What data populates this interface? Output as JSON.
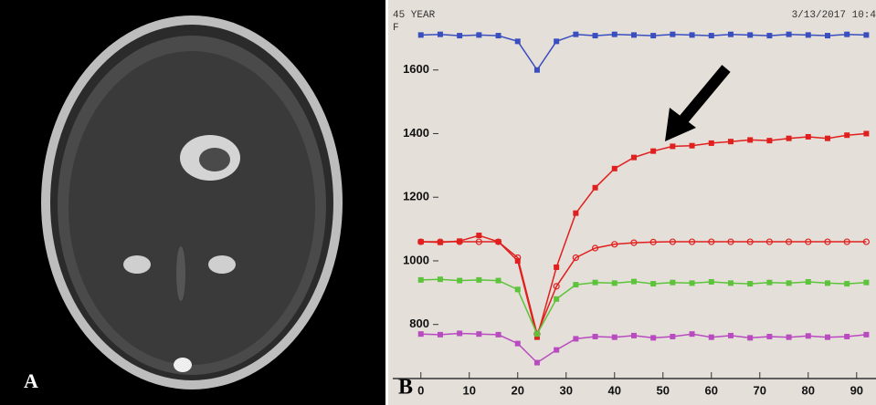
{
  "panel_a": {
    "label": "A"
  },
  "chart_data": {
    "type": "line",
    "label": "B",
    "header_left": "45 YEAR",
    "header_sex": "F",
    "header_right": "3/13/2017 10:4",
    "x": [
      0,
      4,
      8,
      12,
      16,
      20,
      24,
      28,
      32,
      36,
      40,
      44,
      48,
      52,
      56,
      60,
      64,
      68,
      72,
      76,
      80,
      84,
      88,
      92
    ],
    "series": [
      {
        "color": "#3a4fbf",
        "marker": "square",
        "values": [
          1710,
          1712,
          1708,
          1710,
          1708,
          1690,
          1600,
          1690,
          1712,
          1708,
          1712,
          1710,
          1708,
          1712,
          1710,
          1708,
          1712,
          1710,
          1708,
          1712,
          1710,
          1708,
          1712,
          1710
        ]
      },
      {
        "color": "#e0201f",
        "marker": "square",
        "values": [
          1060,
          1058,
          1062,
          1080,
          1060,
          1000,
          760,
          980,
          1150,
          1230,
          1290,
          1325,
          1345,
          1360,
          1362,
          1370,
          1375,
          1380,
          1378,
          1385,
          1390,
          1385,
          1395,
          1400
        ]
      },
      {
        "color": "#e0201f",
        "marker": "circle",
        "values": [
          1060,
          1060,
          1060,
          1060,
          1060,
          1010,
          770,
          920,
          1010,
          1040,
          1052,
          1057,
          1059,
          1060,
          1060,
          1060,
          1060,
          1060,
          1060,
          1060,
          1060,
          1060,
          1060,
          1060
        ]
      },
      {
        "color": "#5cc33a",
        "marker": "square",
        "values": [
          940,
          942,
          938,
          940,
          938,
          910,
          770,
          880,
          925,
          932,
          930,
          935,
          928,
          932,
          930,
          934,
          930,
          928,
          932,
          930,
          934,
          930,
          928,
          932
        ]
      },
      {
        "color": "#b84bc0",
        "marker": "square",
        "values": [
          770,
          768,
          772,
          770,
          768,
          740,
          680,
          720,
          755,
          762,
          760,
          765,
          758,
          762,
          770,
          760,
          765,
          758,
          762,
          760,
          764,
          760,
          762,
          768
        ]
      }
    ],
    "xlim": [
      -5.8,
      94
    ],
    "ylim": [
      630,
      1820
    ],
    "xticks": [
      0,
      10,
      20,
      30,
      40,
      50,
      60,
      70,
      80,
      90
    ],
    "yticks": [
      800,
      1000,
      1200,
      1400,
      1600
    ],
    "grid": false
  }
}
